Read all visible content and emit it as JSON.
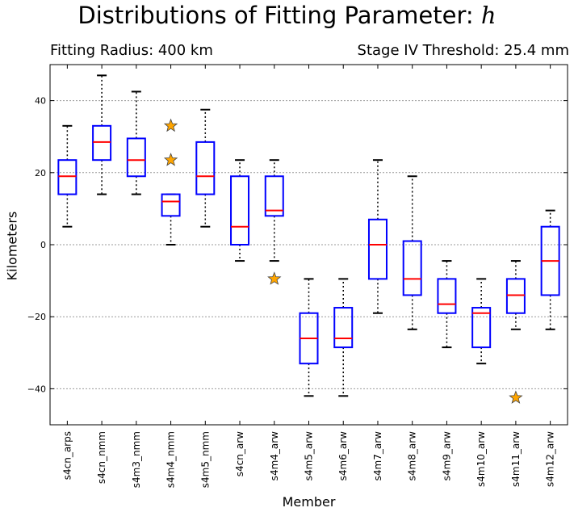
{
  "title_prefix": "Distributions of Fitting Parameter: ",
  "title_param": "h",
  "subtitle_left": "Fitting Radius: 400 km",
  "subtitle_right": "Stage IV Threshold: 25.4 mm",
  "chart_data": {
    "type": "box",
    "xlabel": "Member",
    "ylabel": "Kilometers",
    "ylim": [
      -50,
      50
    ],
    "yticks": [
      -40,
      -20,
      0,
      20,
      40
    ],
    "grid": "horizontal dotted",
    "colors": {
      "box": "#0000ff",
      "median": "#ff0000",
      "whisker": "#000000",
      "outlier": "#ffa500"
    },
    "categories": [
      "s4cn_arps",
      "s4cn_nmm",
      "s4m3_nmm",
      "s4m4_nmm",
      "s4m5_nmm",
      "s4cn_arw",
      "s4m4_arw",
      "s4m5_arw",
      "s4m6_arw",
      "s4m7_arw",
      "s4m8_arw",
      "s4m9_arw",
      "s4m10_arw",
      "s4m11_arw",
      "s4m12_arw"
    ],
    "boxes": [
      {
        "whislo": 5,
        "q1": 14,
        "med": 19,
        "q3": 23.5,
        "whishi": 33,
        "fliers": []
      },
      {
        "whislo": 14,
        "q1": 23.5,
        "med": 28.5,
        "q3": 33,
        "whishi": 47,
        "fliers": []
      },
      {
        "whislo": 14,
        "q1": 19,
        "med": 23.5,
        "q3": 29.5,
        "whishi": 42.5,
        "fliers": []
      },
      {
        "whislo": 0,
        "q1": 8,
        "med": 12,
        "q3": 14,
        "whishi": 14,
        "fliers": [
          33,
          23.5
        ]
      },
      {
        "whislo": 5,
        "q1": 14,
        "med": 19,
        "q3": 28.5,
        "whishi": 37.5,
        "fliers": []
      },
      {
        "whislo": -4.5,
        "q1": 0,
        "med": 5,
        "q3": 19,
        "whishi": 23.5,
        "fliers": []
      },
      {
        "whislo": -4.5,
        "q1": 8,
        "med": 9.5,
        "q3": 19,
        "whishi": 23.5,
        "fliers": [
          -9.5
        ]
      },
      {
        "whislo": -42,
        "q1": -33,
        "med": -26,
        "q3": -19,
        "whishi": -9.5,
        "fliers": []
      },
      {
        "whislo": -42,
        "q1": -28.5,
        "med": -26,
        "q3": -17.5,
        "whishi": -9.5,
        "fliers": []
      },
      {
        "whislo": -19,
        "q1": -9.5,
        "med": 0,
        "q3": 7,
        "whishi": 23.5,
        "fliers": []
      },
      {
        "whislo": -23.5,
        "q1": -14,
        "med": -9.5,
        "q3": 1,
        "whishi": 19,
        "fliers": []
      },
      {
        "whislo": -28.5,
        "q1": -19,
        "med": -16.5,
        "q3": -9.5,
        "whishi": -4.5,
        "fliers": []
      },
      {
        "whislo": -33,
        "q1": -28.5,
        "med": -19,
        "q3": -17.5,
        "whishi": -9.5,
        "fliers": []
      },
      {
        "whislo": -23.5,
        "q1": -19,
        "med": -14,
        "q3": -9.5,
        "whishi": -4.5,
        "fliers": [
          -42.5
        ]
      },
      {
        "whislo": -23.5,
        "q1": -14,
        "med": -4.5,
        "q3": 5,
        "whishi": 9.5,
        "fliers": []
      }
    ]
  }
}
